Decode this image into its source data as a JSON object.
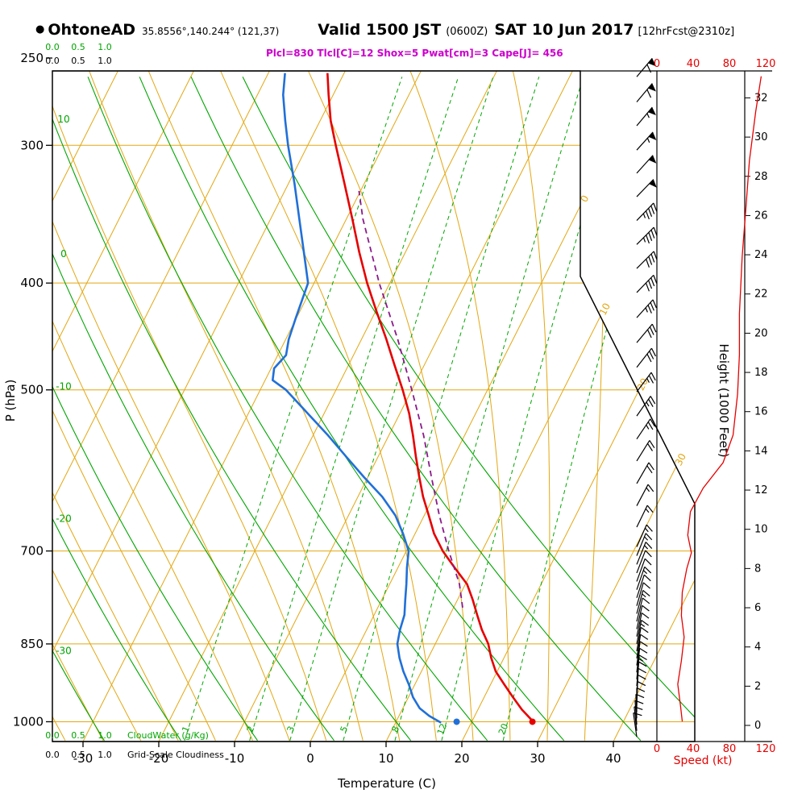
{
  "header": {
    "bullet": "●",
    "station": "OhtoneAD",
    "coords": "35.8556°,140.244° (121,37)",
    "valid_label": "Valid 1500 JST",
    "valid_zulu": "(0600Z)",
    "valid_date": "SAT 10 Jun 2017",
    "fcst_tag": "[12hrFcst@2310z]",
    "params_line": "Plcl=830 Tlcl[C]=12 Shox=5 Pwat[cm]=3 Cape[J]= 456"
  },
  "axes": {
    "pressure_label": "P (hPa)",
    "temperature_label": "Temperature (C)",
    "height_label": "Height (1000 Feet)",
    "speed_label": "Speed (kt)",
    "cloudwater_label": "CloudWater (g/Kg)",
    "cloudiness_label": "Grid-Scale Cloudiness",
    "cloud_scale": [
      "0.0",
      "0.5",
      "1.0"
    ]
  },
  "chart_data": {
    "type": "skewt-log-p sounding",
    "pressure_ticks": [
      250,
      300,
      400,
      500,
      700,
      850,
      1000
    ],
    "pressure_grid": [
      300,
      400,
      500,
      700,
      850,
      1000
    ],
    "temp_ticks": [
      -30,
      -20,
      -10,
      0,
      10,
      20,
      30,
      40
    ],
    "height_ticks_kft": [
      0,
      2,
      4,
      6,
      8,
      10,
      12,
      14,
      16,
      18,
      20,
      22,
      24,
      26,
      28,
      30,
      32
    ],
    "speed_ticks_kt": [
      0,
      40,
      80,
      120
    ],
    "isotherms_c": {
      "min": -100,
      "max": 40,
      "step": 10
    },
    "isotherm_labels_c": [
      0,
      10,
      20,
      30
    ],
    "dry_adiabats_c": [
      -30,
      -20,
      -10,
      0,
      10,
      20,
      30,
      40,
      50
    ],
    "dry_adiabat_labels_c": [
      10,
      0,
      -10,
      -20,
      -30
    ],
    "moist_adiabats_c": [
      -65,
      -60,
      -55,
      -50,
      -45,
      -40,
      -35,
      -30,
      -25,
      -20,
      -15,
      -10,
      -5,
      0,
      5,
      10,
      15,
      20,
      25,
      30,
      35
    ],
    "mixing_ratio_gkg": [
      1,
      2,
      3,
      5,
      8,
      12,
      20
    ],
    "temperature_c": [
      [
        1002,
        28.3
      ],
      [
        975,
        25.8
      ],
      [
        950,
        23.8
      ],
      [
        925,
        21.8
      ],
      [
        900,
        19.8
      ],
      [
        875,
        18.3
      ],
      [
        850,
        17
      ],
      [
        825,
        15.2
      ],
      [
        800,
        13.6
      ],
      [
        775,
        12
      ],
      [
        750,
        10.2
      ],
      [
        725,
        7.5
      ],
      [
        700,
        4.8
      ],
      [
        675,
        2.5
      ],
      [
        650,
        0.6
      ],
      [
        625,
        -1.4
      ],
      [
        600,
        -3.2
      ],
      [
        575,
        -5
      ],
      [
        550,
        -6.8
      ],
      [
        525,
        -8.8
      ],
      [
        500,
        -11.2
      ],
      [
        475,
        -13.9
      ],
      [
        450,
        -16.7
      ],
      [
        425,
        -19.8
      ],
      [
        400,
        -23
      ],
      [
        375,
        -26.1
      ],
      [
        350,
        -29.2
      ],
      [
        325,
        -32.6
      ],
      [
        300,
        -36.3
      ],
      [
        285,
        -38.6
      ],
      [
        270,
        -40.6
      ],
      [
        258,
        -42.2
      ]
    ],
    "dewpoint_c": [
      [
        1002,
        16
      ],
      [
        988,
        14
      ],
      [
        972,
        12.2
      ],
      [
        950,
        10.6
      ],
      [
        925,
        9.2
      ],
      [
        900,
        7.6
      ],
      [
        875,
        6.2
      ],
      [
        850,
        5
      ],
      [
        825,
        4.4
      ],
      [
        800,
        4
      ],
      [
        775,
        3.1
      ],
      [
        750,
        2.2
      ],
      [
        725,
        1.2
      ],
      [
        700,
        0.3
      ],
      [
        675,
        -1.6
      ],
      [
        650,
        -3.8
      ],
      [
        625,
        -6.8
      ],
      [
        600,
        -10.5
      ],
      [
        575,
        -14.2
      ],
      [
        550,
        -18
      ],
      [
        525,
        -22.2
      ],
      [
        500,
        -26.6
      ],
      [
        490,
        -29
      ],
      [
        478,
        -29.6
      ],
      [
        465,
        -28.9
      ],
      [
        450,
        -29.6
      ],
      [
        430,
        -30.1
      ],
      [
        400,
        -30.8
      ],
      [
        375,
        -33.4
      ],
      [
        350,
        -36.2
      ],
      [
        325,
        -39.2
      ],
      [
        300,
        -42.6
      ],
      [
        285,
        -44.6
      ],
      [
        270,
        -46.6
      ],
      [
        258,
        -47.8
      ]
    ],
    "parcel_c": [
      [
        788,
        11.2
      ],
      [
        750,
        9.2
      ],
      [
        700,
        5.6
      ],
      [
        650,
        2
      ],
      [
        600,
        -1.6
      ],
      [
        550,
        -5.4
      ],
      [
        500,
        -10
      ],
      [
        450,
        -15.2
      ],
      [
        400,
        -21.4
      ],
      [
        350,
        -27.8
      ],
      [
        330,
        -30.2
      ]
    ],
    "surface": {
      "p_hpa": 1000,
      "temp_c": 28,
      "dewpoint_c": 18
    },
    "wind_barbs": [
      [
        260,
        60,
        40
      ],
      [
        274,
        60,
        40
      ],
      [
        288,
        55,
        40
      ],
      [
        303,
        55,
        42
      ],
      [
        318,
        50,
        42
      ],
      [
        334,
        50,
        44
      ],
      [
        351,
        45,
        44
      ],
      [
        369,
        45,
        45
      ],
      [
        388,
        40,
        45
      ],
      [
        408,
        40,
        44
      ],
      [
        430,
        35,
        42
      ],
      [
        453,
        30,
        40
      ],
      [
        477,
        30,
        38
      ],
      [
        502,
        25,
        37
      ],
      [
        528,
        25,
        35
      ],
      [
        554,
        25,
        34
      ],
      [
        580,
        20,
        32
      ],
      [
        608,
        20,
        30
      ],
      [
        637,
        15,
        28
      ],
      [
        666,
        15,
        26
      ],
      [
        694,
        15,
        24
      ],
      [
        707,
        15,
        22
      ],
      [
        720,
        15,
        22
      ],
      [
        733,
        10,
        21
      ],
      [
        746,
        10,
        20
      ],
      [
        759,
        15,
        19
      ],
      [
        772,
        10,
        18
      ],
      [
        785,
        10,
        16
      ],
      [
        798,
        15,
        15
      ],
      [
        811,
        10,
        14
      ],
      [
        824,
        10,
        13
      ],
      [
        837,
        10,
        12
      ],
      [
        850,
        15,
        11
      ],
      [
        863,
        10,
        10
      ],
      [
        876,
        10,
        9
      ],
      [
        889,
        10,
        8
      ],
      [
        902,
        10,
        7
      ],
      [
        915,
        15,
        6
      ],
      [
        928,
        10,
        5
      ],
      [
        941,
        10,
        4
      ],
      [
        954,
        10,
        3
      ],
      [
        967,
        10,
        2
      ],
      [
        980,
        10,
        0
      ],
      [
        993,
        10,
        358
      ],
      [
        1006,
        10,
        356
      ],
      [
        1019,
        10,
        354
      ],
      [
        1032,
        10,
        352
      ]
    ],
    "speed_profile": [
      [
        33.1,
        115
      ],
      [
        31.3,
        109
      ],
      [
        28.8,
        102
      ],
      [
        26.3,
        98
      ],
      [
        23.9,
        94
      ],
      [
        21,
        91
      ],
      [
        18.9,
        91
      ],
      [
        16.9,
        89
      ],
      [
        14.8,
        84
      ],
      [
        13.4,
        73
      ],
      [
        12.1,
        51
      ],
      [
        10.9,
        37
      ],
      [
        9.7,
        34
      ],
      [
        8.8,
        38
      ],
      [
        8,
        33
      ],
      [
        6.8,
        28
      ],
      [
        5.6,
        27
      ],
      [
        4.5,
        30
      ],
      [
        3.3,
        27
      ],
      [
        2.1,
        23
      ],
      [
        1,
        26
      ],
      [
        0.2,
        28
      ]
    ],
    "colors": {
      "grid": "#e3a712",
      "green": "#00a500",
      "temp": "#e60000",
      "dew": "#2070d8",
      "parcel": "#8a1a8a",
      "speed": "#e60000",
      "magenta": "#cc00cc",
      "black": "#000000"
    }
  }
}
